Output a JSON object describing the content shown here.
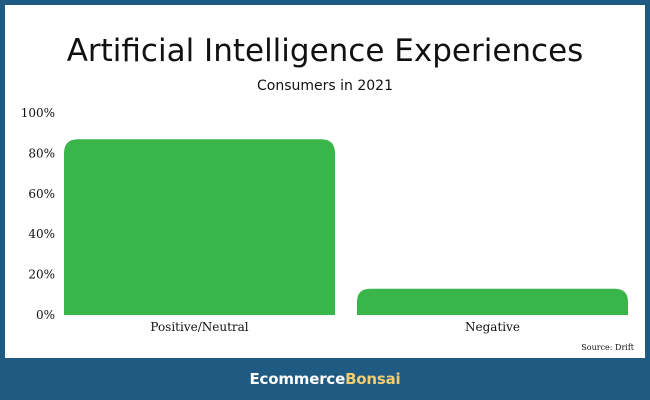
{
  "chart_data": {
    "type": "bar",
    "title": "Artificial Intelligence Experiences",
    "subtitle": "Consumers in 2021",
    "categories": [
      "Positive/Neutral",
      "Negative"
    ],
    "values": [
      87,
      13
    ],
    "y_ticks": [
      "100%",
      "80%",
      "60%",
      "40%",
      "20%",
      "0%"
    ],
    "ylim": [
      0,
      100
    ],
    "grid": false,
    "legend": "none",
    "colors": {
      "bar": "#39b54a",
      "frame": "#1f5a83",
      "panel": "#ffffff",
      "text": "#111111",
      "brand_accent": "#f3cc72"
    }
  },
  "source": "Source: Drift",
  "footer": {
    "brand_part_1": "Ecommerce",
    "brand_part_2": "Bonsai"
  }
}
